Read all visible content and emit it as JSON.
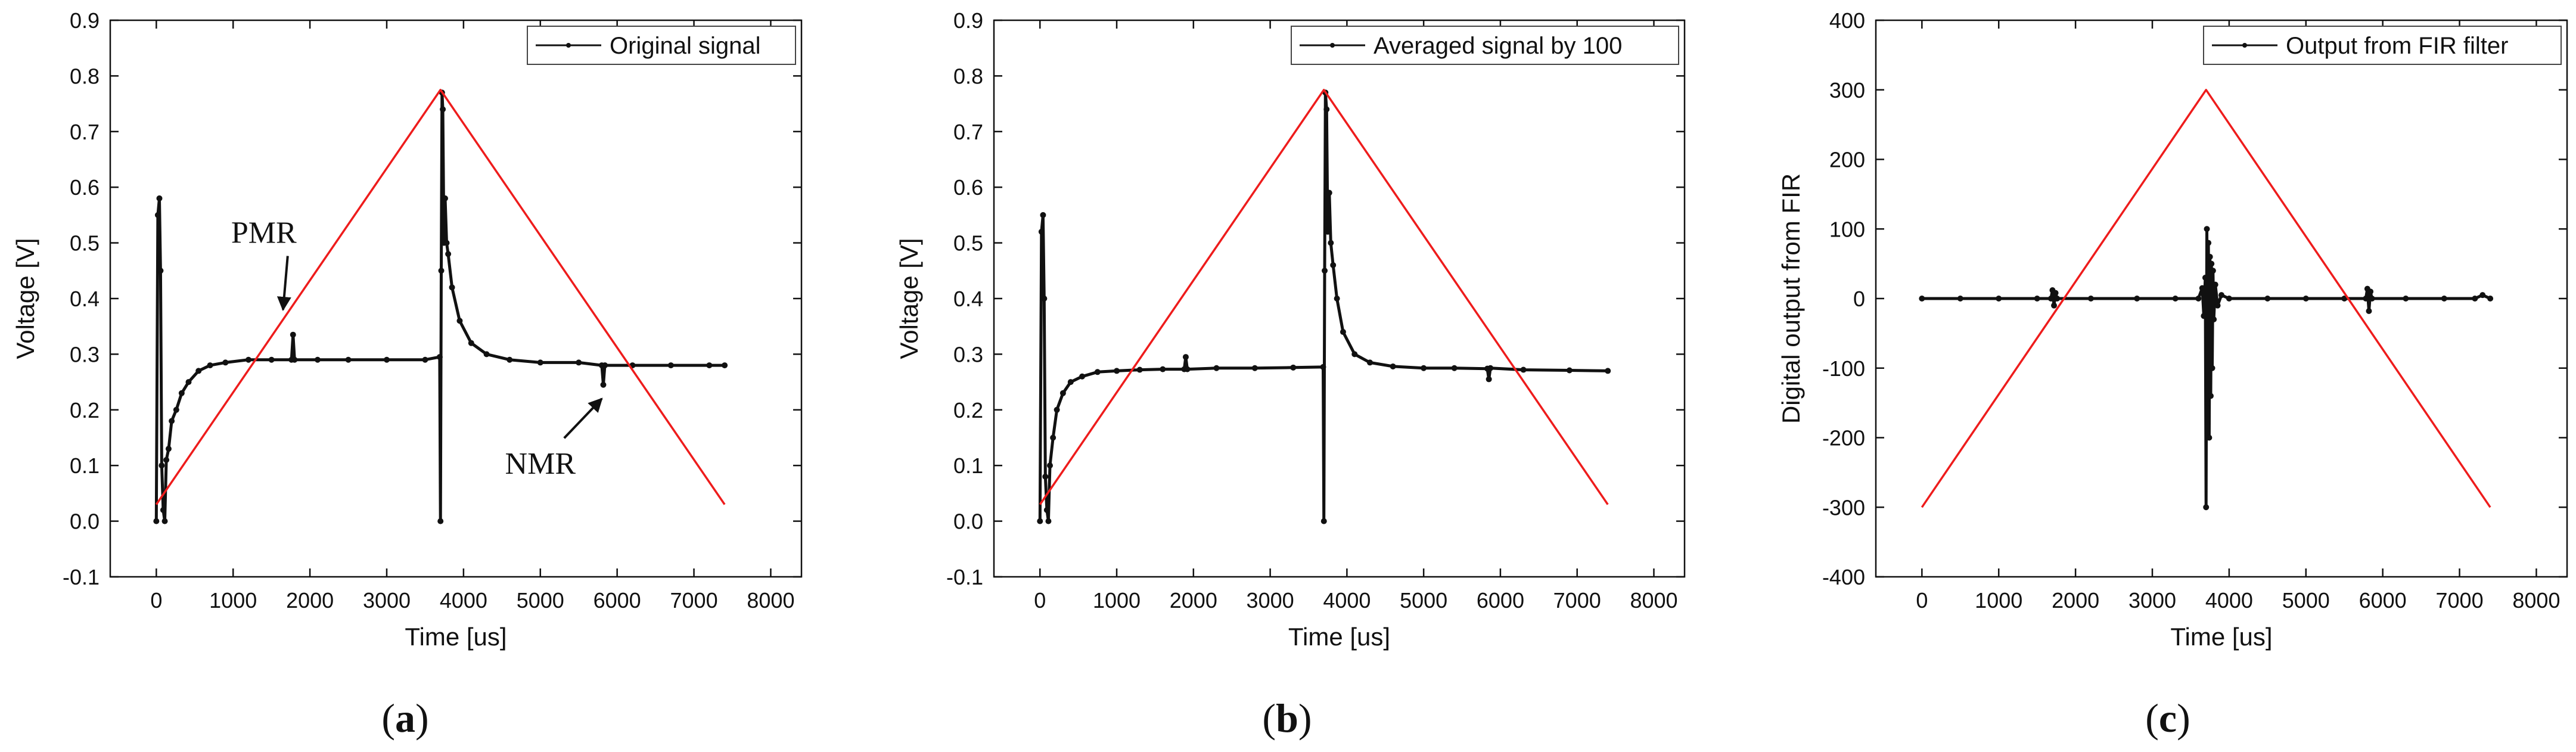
{
  "chart_data": [
    {
      "type": "line",
      "panel_label": "a",
      "xlabel": "Time [us]",
      "ylabel": "Voltage [V]",
      "xlim": [
        -600,
        8400
      ],
      "ylim": [
        -0.1,
        0.9
      ],
      "xticks": [
        0,
        1000,
        2000,
        3000,
        4000,
        5000,
        6000,
        7000,
        8000
      ],
      "yticks": [
        -0.1,
        0.0,
        0.1,
        0.2,
        0.3,
        0.4,
        0.5,
        0.6,
        0.7,
        0.8,
        0.9
      ],
      "ytick_labels": [
        "-0.1",
        "0.0",
        "0.1",
        "0.2",
        "0.3",
        "0.4",
        "0.5",
        "0.6",
        "0.7",
        "0.8",
        "0.9"
      ],
      "legend": "Original signal",
      "legend_position": "top-right",
      "series": [
        {
          "name": "Original signal",
          "color": "#111111",
          "x": [
            0,
            20,
            40,
            55,
            70,
            90,
            110,
            130,
            160,
            200,
            260,
            330,
            420,
            550,
            700,
            900,
            1200,
            1500,
            1760,
            1780,
            1800,
            2100,
            2500,
            3000,
            3500,
            3690,
            3700,
            3710,
            3720,
            3730,
            3745,
            3760,
            3780,
            3800,
            3850,
            3950,
            4100,
            4300,
            4600,
            5000,
            5500,
            5800,
            5820,
            5840,
            6200,
            6700,
            7200,
            7400
          ],
          "y": [
            0.0,
            0.55,
            0.58,
            0.45,
            0.1,
            0.02,
            0.0,
            0.11,
            0.13,
            0.18,
            0.2,
            0.23,
            0.25,
            0.27,
            0.28,
            0.285,
            0.29,
            0.29,
            0.29,
            0.335,
            0.29,
            0.29,
            0.29,
            0.29,
            0.29,
            0.295,
            0.0,
            0.45,
            0.77,
            0.74,
            0.5,
            0.58,
            0.5,
            0.48,
            0.42,
            0.36,
            0.32,
            0.3,
            0.29,
            0.285,
            0.285,
            0.28,
            0.245,
            0.28,
            0.28,
            0.28,
            0.28,
            0.28
          ]
        },
        {
          "name": "Triangle",
          "color": "#ee1c1c",
          "x": [
            0,
            3700,
            7400
          ],
          "y": [
            0.03,
            0.775,
            0.03
          ]
        }
      ],
      "annotations": [
        {
          "text": "PMR",
          "x": 1400,
          "y": 0.5,
          "arrow_to": [
            1650,
            0.38
          ]
        },
        {
          "text": "NMR",
          "x": 5000,
          "y": 0.085,
          "arrow_to": [
            5800,
            0.22
          ]
        }
      ]
    },
    {
      "type": "line",
      "panel_label": "b",
      "xlabel": "Time [us]",
      "ylabel": "Voltage [V]",
      "xlim": [
        -600,
        8400
      ],
      "ylim": [
        -0.1,
        0.9
      ],
      "xticks": [
        0,
        1000,
        2000,
        3000,
        4000,
        5000,
        6000,
        7000,
        8000
      ],
      "yticks": [
        -0.1,
        0.0,
        0.1,
        0.2,
        0.3,
        0.4,
        0.5,
        0.6,
        0.7,
        0.8,
        0.9
      ],
      "ytick_labels": [
        "-0.1",
        "0.0",
        "0.1",
        "0.2",
        "0.3",
        "0.4",
        "0.5",
        "0.6",
        "0.7",
        "0.8",
        "0.9"
      ],
      "legend": "Averaged signal by 100",
      "legend_position": "top-right",
      "series": [
        {
          "name": "Averaged signal by 100",
          "color": "#111111",
          "x": [
            0,
            20,
            40,
            55,
            70,
            90,
            110,
            130,
            170,
            220,
            300,
            400,
            550,
            750,
            1000,
            1300,
            1600,
            1880,
            1900,
            1920,
            2300,
            2800,
            3300,
            3690,
            3700,
            3710,
            3720,
            3735,
            3750,
            3770,
            3790,
            3820,
            3870,
            3950,
            4100,
            4300,
            4600,
            5000,
            5400,
            5830,
            5850,
            5870,
            6300,
            6900,
            7400
          ],
          "y": [
            0.0,
            0.52,
            0.55,
            0.4,
            0.08,
            0.02,
            0.0,
            0.1,
            0.15,
            0.2,
            0.23,
            0.25,
            0.26,
            0.268,
            0.27,
            0.272,
            0.273,
            0.273,
            0.295,
            0.273,
            0.275,
            0.275,
            0.276,
            0.277,
            0.0,
            0.45,
            0.77,
            0.74,
            0.52,
            0.59,
            0.5,
            0.46,
            0.4,
            0.34,
            0.3,
            0.285,
            0.278,
            0.275,
            0.275,
            0.274,
            0.255,
            0.275,
            0.272,
            0.271,
            0.27
          ]
        },
        {
          "name": "Triangle",
          "color": "#ee1c1c",
          "x": [
            0,
            3700,
            7400
          ],
          "y": [
            0.03,
            0.775,
            0.03
          ]
        }
      ]
    },
    {
      "type": "line",
      "panel_label": "c",
      "xlabel": "Time [us]",
      "ylabel": "Digital output from FIR",
      "xlim": [
        -600,
        8400
      ],
      "ylim": [
        -400,
        400
      ],
      "xticks": [
        0,
        1000,
        2000,
        3000,
        4000,
        5000,
        6000,
        7000,
        8000
      ],
      "yticks": [
        -400,
        -300,
        -200,
        -100,
        0,
        100,
        200,
        300,
        400
      ],
      "ytick_labels": [
        "-400",
        "-300",
        "-200",
        "-100",
        "0",
        "100",
        "200",
        "300",
        "400"
      ],
      "legend": "Output from FIR filter",
      "legend_position": "top-right",
      "series": [
        {
          "name": "Output from FIR filter",
          "color": "#111111",
          "x": [
            0,
            500,
            1000,
            1500,
            1680,
            1700,
            1720,
            1740,
            1760,
            2200,
            2800,
            3300,
            3600,
            3650,
            3670,
            3690,
            3700,
            3710,
            3720,
            3730,
            3740,
            3750,
            3760,
            3770,
            3780,
            3790,
            3800,
            3820,
            3850,
            3900,
            4000,
            4500,
            5000,
            5500,
            5780,
            5800,
            5820,
            5840,
            5860,
            6300,
            6800,
            7200,
            7300,
            7400
          ],
          "y": [
            0,
            0,
            0,
            0,
            0,
            12,
            -10,
            8,
            0,
            0,
            0,
            0,
            0,
            15,
            -25,
            30,
            -300,
            100,
            -150,
            80,
            -200,
            60,
            -140,
            50,
            -100,
            40,
            -30,
            20,
            -10,
            5,
            0,
            0,
            0,
            0,
            0,
            14,
            -18,
            10,
            0,
            0,
            0,
            0,
            5,
            0
          ]
        },
        {
          "name": "Triangle",
          "color": "#ee1c1c",
          "x": [
            0,
            3700,
            7400
          ],
          "y": [
            -300,
            300,
            -300
          ]
        }
      ]
    }
  ]
}
